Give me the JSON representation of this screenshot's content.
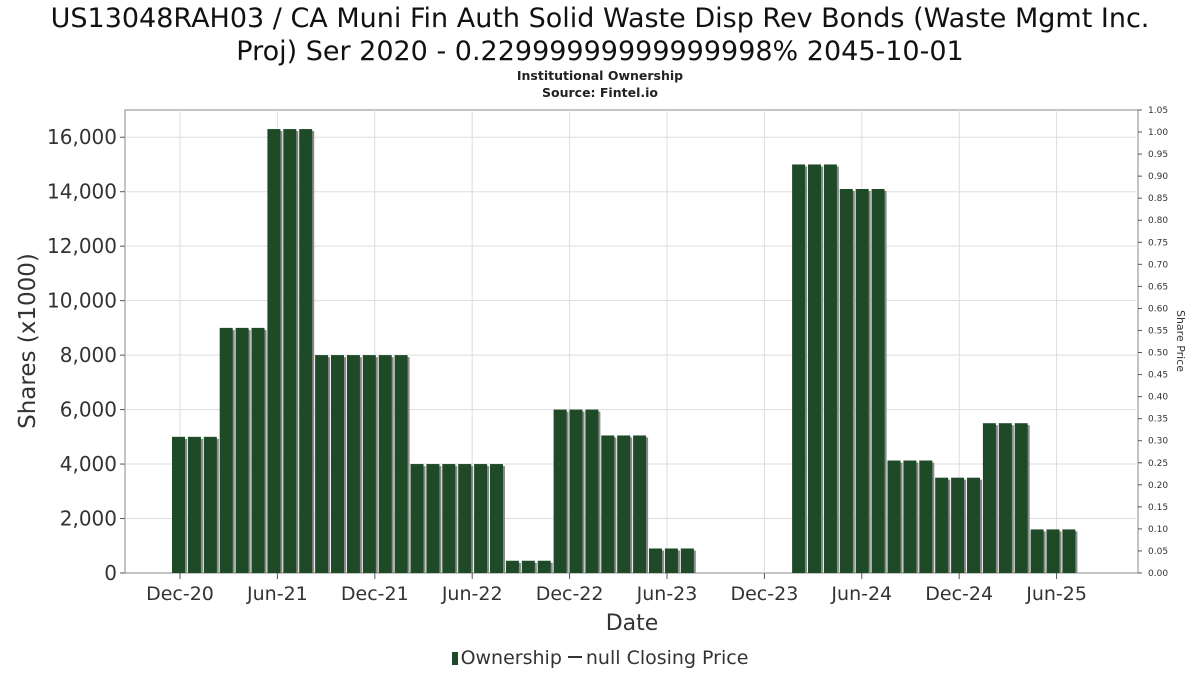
{
  "title_line1": "US13048RAH03 / CA Muni Fin Auth Solid Waste Disp Rev Bonds (Waste Mgmt Inc.",
  "title_line2": "Proj) Ser 2020 - 0.22999999999999998% 2045-10-01",
  "subtitle1": "Institutional Ownership",
  "subtitle2": "Source: Fintel.io",
  "legend": {
    "ownership": "Ownership",
    "closing_price": "null Closing Price"
  },
  "colors": {
    "bar": "#1e4a28",
    "bar_shadow": "#8a8a8a",
    "grid": "#dddddd",
    "axis": "#888888"
  },
  "chart_data": {
    "type": "bar",
    "xlabel": "Date",
    "ylabel": "Shares (x1000)",
    "y2label": "Share Price",
    "ylim": [
      0,
      17000
    ],
    "y_ticks": [
      0,
      2000,
      4000,
      6000,
      8000,
      10000,
      12000,
      14000,
      16000
    ],
    "y_tick_labels": [
      "0",
      "2,000",
      "4,000",
      "6,000",
      "8,000",
      "10,000",
      "12,000",
      "14,000",
      "16,000"
    ],
    "y2lim": [
      0,
      1.05
    ],
    "y2_ticks": [
      "0.00",
      "0.05",
      "0.10",
      "0.15",
      "0.20",
      "0.25",
      "0.30",
      "0.35",
      "0.40",
      "0.45",
      "0.50",
      "0.55",
      "0.60",
      "0.65",
      "0.70",
      "0.75",
      "0.80",
      "0.85",
      "0.90",
      "0.95",
      "1.00",
      "1.05"
    ],
    "x_tick_labels": [
      "Dec-20",
      "Jun-21",
      "Dec-21",
      "Jun-22",
      "Dec-22",
      "Jun-23",
      "Dec-23",
      "Jun-24",
      "Dec-24",
      "Jun-25"
    ],
    "grid": true,
    "series": [
      {
        "name": "Ownership",
        "values": [
          5000,
          5000,
          5000,
          9000,
          9000,
          9000,
          16300,
          16300,
          16300,
          8000,
          8000,
          8000,
          8000,
          8000,
          8000,
          4000,
          4000,
          4000,
          4000,
          4000,
          4000,
          450,
          450,
          450,
          6000,
          6000,
          6000,
          5050,
          5050,
          5050,
          900,
          900,
          900,
          0,
          0,
          0,
          0,
          0,
          0,
          15000,
          15000,
          15000,
          14100,
          14100,
          14100,
          4130,
          4130,
          4130,
          3500,
          3500,
          3500,
          5500,
          5500,
          5500,
          1600,
          1600,
          1600
        ]
      }
    ]
  }
}
